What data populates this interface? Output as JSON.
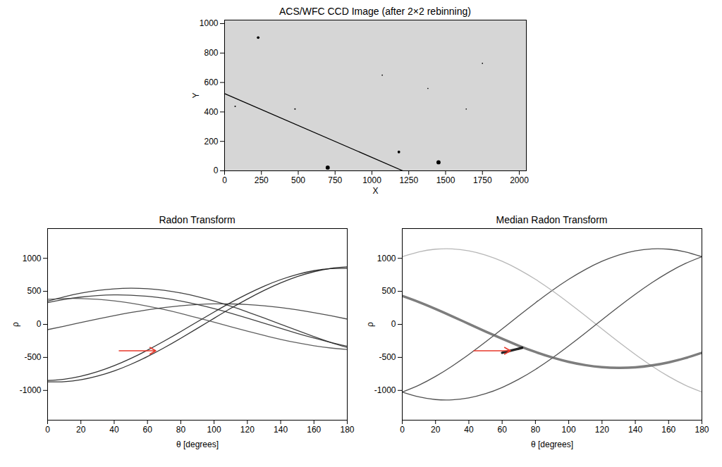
{
  "chart_data": [
    {
      "type": "image",
      "title": "ACS/WFC CCD Image (after 2×2 rebinning)",
      "x_label": "X",
      "y_label": "Y",
      "xlim": [
        0,
        2048
      ],
      "ylim": [
        0,
        1024
      ],
      "xticks": [
        0,
        250,
        500,
        750,
        1000,
        1250,
        1500,
        1750,
        2000
      ],
      "yticks": [
        0,
        200,
        400,
        600,
        800,
        1000
      ],
      "series": [
        {
          "type": "line",
          "color": "#000000",
          "x": [
            0,
            1210
          ],
          "values": [
            525,
            0
          ]
        },
        {
          "type": "scatter",
          "color": "#000000",
          "x": [
            700,
            1452,
            1183,
            228,
            478,
            72,
            1380,
            1750,
            1070,
            1640
          ],
          "values": [
            22,
            58,
            128,
            905,
            420,
            438,
            560,
            730,
            650,
            420
          ],
          "size": [
            14,
            14,
            9,
            9,
            5,
            5,
            4,
            4,
            4,
            4
          ]
        }
      ]
    },
    {
      "type": "line",
      "title": "Radon Transform",
      "x_label": "θ [degrees]",
      "y_label": "ρ",
      "x": [
        0,
        10,
        20,
        30,
        40,
        50,
        60,
        70,
        80,
        90,
        100,
        110,
        120,
        130,
        140,
        150,
        160,
        170,
        180
      ],
      "xlim": [
        0,
        180
      ],
      "ylim": [
        -1450,
        1450
      ],
      "xticks": [
        0,
        20,
        40,
        60,
        80,
        100,
        120,
        140,
        160,
        180
      ],
      "yticks": [
        -1000,
        -500,
        0,
        500,
        1000
      ],
      "series": [
        {
          "color": "#111111",
          "values": [
            -870,
            -867,
            -839,
            -783,
            -705,
            -605,
            -487,
            -354,
            -210,
            -60,
            92,
            242,
            383,
            513,
            627,
            723,
            797,
            847,
            870
          ]
        },
        {
          "color": "#111111",
          "values": [
            -850,
            -830,
            -785,
            -716,
            -625,
            -516,
            -390,
            -253,
            -109,
            40,
            187,
            329,
            460,
            578,
            677,
            756,
            813,
            844,
            850
          ]
        },
        {
          "color": "#222222",
          "values": [
            350,
            418,
            473,
            513,
            538,
            547,
            539,
            515,
            475,
            420,
            353,
            275,
            189,
            97,
            2,
            -93,
            -185,
            -272,
            -350
          ]
        },
        {
          "color": "#222222",
          "values": [
            330,
            377,
            413,
            436,
            446,
            442,
            425,
            395,
            353,
            300,
            239,
            169,
            95,
            18,
            -60,
            -136,
            -207,
            -273,
            -330
          ]
        },
        {
          "color": "#333333",
          "values": [
            -80,
            -27,
            28,
            81,
            132,
            179,
            220,
            255,
            282,
            300,
            310,
            309,
            300,
            281,
            254,
            219,
            178,
            131,
            80
          ]
        },
        {
          "color": "#444444",
          "values": [
            380,
            391,
            391,
            379,
            355,
            321,
            277,
            224,
            165,
            100,
            33,
            -36,
            -103,
            -167,
            -227,
            -279,
            -323,
            -357,
            -380
          ]
        }
      ],
      "annotations": [
        {
          "type": "arrow",
          "x1": 43,
          "y1": -400,
          "x2": 65,
          "y2": -400,
          "color": "#e8392b"
        }
      ]
    },
    {
      "type": "line",
      "title": "Median Radon Transform",
      "x_label": "θ [degrees]",
      "y_label": "ρ",
      "x": [
        0,
        10,
        20,
        30,
        40,
        50,
        60,
        70,
        80,
        90,
        100,
        110,
        120,
        130,
        140,
        150,
        160,
        170,
        180
      ],
      "xlim": [
        0,
        180
      ],
      "ylim": [
        -1450,
        1450
      ],
      "xticks": [
        0,
        20,
        40,
        60,
        80,
        100,
        120,
        140,
        160,
        180
      ],
      "yticks": [
        -1000,
        -500,
        0,
        500,
        1000
      ],
      "series": [
        {
          "color": "#333333",
          "values": [
            -1024,
            -920,
            -788,
            -631,
            -455,
            -266,
            -69,
            131,
            326,
            512,
            682,
            831,
            955,
            1050,
            1113,
            1143,
            1138,
            1098,
            1024
          ]
        },
        {
          "color": "#aaaaaa",
          "values": [
            1024,
            1098,
            1138,
            1143,
            1113,
            1050,
            955,
            831,
            682,
            512,
            326,
            131,
            -69,
            -266,
            -455,
            -631,
            -788,
            -920,
            -1024
          ]
        },
        {
          "color": "#333333",
          "values": [
            -1024,
            -1098,
            -1138,
            -1143,
            -1113,
            -1050,
            -955,
            -831,
            -682,
            -512,
            -326,
            -131,
            69,
            266,
            455,
            631,
            788,
            920,
            1024
          ]
        },
        {
          "color": "#666666",
          "line_style": "bold",
          "values": [
            430,
            337,
            233,
            122,
            7,
            -107,
            -218,
            -323,
            -418,
            -500,
            -568,
            -617,
            -648,
            -659,
            -651,
            -622,
            -575,
            -511,
            -430
          ]
        },
        {
          "color": "#000000",
          "line_style": "bold",
          "x": [
            60,
            64,
            68,
            72
          ],
          "values": [
            -430,
            -405,
            -380,
            -355
          ]
        }
      ],
      "annotations": [
        {
          "type": "arrow",
          "x1": 43,
          "y1": -400,
          "x2": 65,
          "y2": -400,
          "color": "#e8392b"
        }
      ]
    }
  ]
}
